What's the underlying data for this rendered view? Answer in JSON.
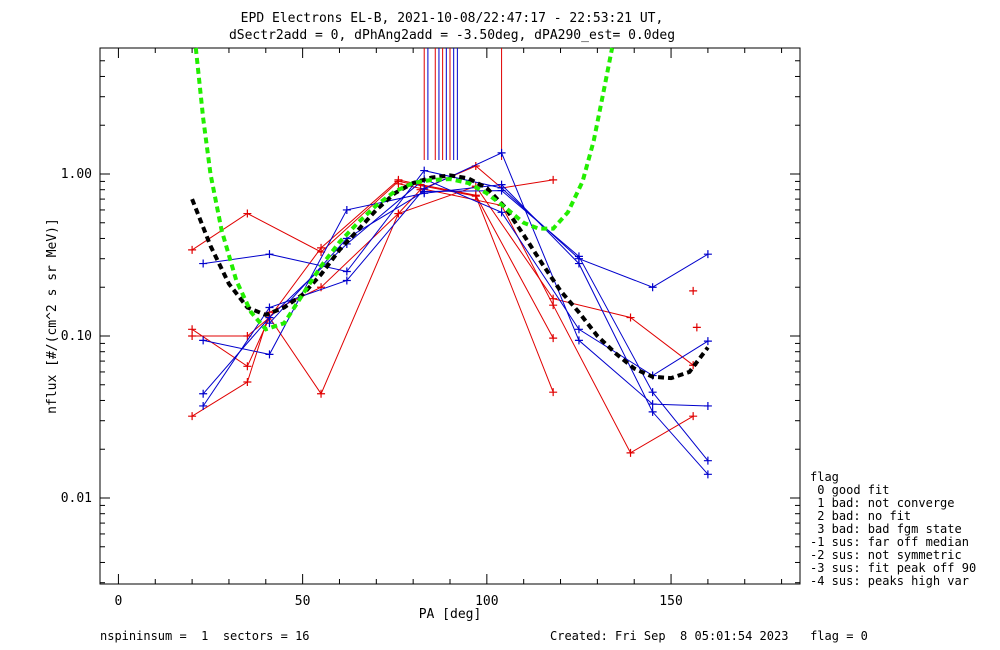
{
  "title_line1": "EPD Electrons EL-B, 2021-10-08/22:47:17 - 22:53:21 UT,",
  "title_line2": "dSectr2add = 0, dPhAng2add = -3.50deg, dPA290_est=   0.0deg",
  "footer_left": "nspininsum =  1  sectors = 16",
  "footer_right": "Created: Fri Sep  8 05:01:54 2023   flag = 0",
  "legend": {
    "title": "flag",
    "items": [
      " 0 good fit",
      " 1 bad: not converge",
      " 2 bad: no fit",
      " 3 bad: bad fgm state",
      "-1 sus: far off median",
      "-2 sus: not symmetric",
      "-3 sus: fit peak off 90",
      "-4 sus: peaks high var"
    ]
  },
  "colors": {
    "red": "#e00000",
    "blue": "#0000cc",
    "fit_black": "#000000",
    "fit_green": "#22ee00"
  },
  "chart_data": {
    "type": "line",
    "xlabel": "PA [deg]",
    "ylabel": "nflux [#/(cm^2 s sr MeV)]",
    "xlim": [
      -5,
      185
    ],
    "ylim": [
      0.003,
      6.0
    ],
    "yscale": "log",
    "xticks": [
      0,
      50,
      100,
      150
    ],
    "yticks": [
      0.01,
      0.1,
      1.0
    ],
    "ytick_labels": [
      "0.01",
      "0.10",
      "1.00"
    ],
    "series": [
      {
        "color": "red",
        "points": [
          [
            20,
            0.11
          ],
          [
            35,
            0.065
          ],
          [
            41,
            0.13
          ],
          [
            55,
            0.35
          ],
          [
            76,
            0.92
          ],
          [
            82,
            0.86
          ],
          [
            97,
            0.74
          ],
          [
            118,
            0.097
          ]
        ]
      },
      {
        "color": "red",
        "points": [
          [
            20,
            0.032
          ],
          [
            35,
            0.052
          ],
          [
            41,
            0.14
          ],
          [
            55,
            0.2
          ],
          [
            76,
            0.57
          ],
          [
            82,
            0.8
          ],
          [
            97,
            1.12
          ],
          [
            104,
            0.82
          ],
          [
            118,
            0.92
          ]
        ]
      },
      {
        "color": "red",
        "points": [
          [
            20,
            0.34
          ],
          [
            35,
            0.57
          ],
          [
            55,
            0.33
          ],
          [
            76,
            0.9
          ],
          [
            97,
            0.73
          ],
          [
            118,
            0.045
          ]
        ]
      },
      {
        "color": "red",
        "points": [
          [
            20,
            0.1
          ],
          [
            35,
            0.1
          ],
          [
            41,
            0.13
          ],
          [
            55,
            0.044
          ],
          [
            76,
            0.57
          ],
          [
            97,
            0.84
          ],
          [
            118,
            0.17
          ],
          [
            139,
            0.13
          ],
          [
            156,
            0.066
          ]
        ]
      },
      {
        "color": "red",
        "points": [
          [
            76,
            0.87
          ],
          [
            104,
            0.64
          ],
          [
            118,
            0.155
          ],
          [
            139,
            0.019
          ],
          [
            156,
            0.032
          ]
        ]
      },
      {
        "color": "red",
        "points": [
          [
            156,
            0.19
          ]
        ]
      },
      {
        "color": "red",
        "points": [
          [
            157,
            0.113
          ]
        ]
      },
      {
        "color": "blue",
        "points": [
          [
            23,
            0.28
          ],
          [
            41,
            0.32
          ],
          [
            62,
            0.25
          ],
          [
            83,
            1.05
          ],
          [
            104,
            0.82
          ],
          [
            125,
            0.3
          ],
          [
            145,
            0.2
          ],
          [
            160,
            0.32
          ]
        ]
      },
      {
        "color": "blue",
        "points": [
          [
            23,
            0.044
          ],
          [
            41,
            0.13
          ],
          [
            62,
            0.37
          ],
          [
            83,
            0.93
          ],
          [
            104,
            0.58
          ],
          [
            125,
            0.11
          ],
          [
            145,
            0.057
          ],
          [
            160,
            0.093
          ]
        ]
      },
      {
        "color": "blue",
        "points": [
          [
            23,
            0.037
          ],
          [
            41,
            0.15
          ],
          [
            62,
            0.22
          ],
          [
            83,
            0.81
          ],
          [
            104,
            1.35
          ],
          [
            125,
            0.094
          ],
          [
            145,
            0.038
          ],
          [
            160,
            0.037
          ]
        ]
      },
      {
        "color": "blue",
        "points": [
          [
            23,
            0.094
          ],
          [
            41,
            0.077
          ],
          [
            62,
            0.6
          ],
          [
            83,
            0.76
          ],
          [
            104,
            0.86
          ],
          [
            125,
            0.28
          ],
          [
            145,
            0.034
          ],
          [
            160,
            0.014
          ]
        ]
      },
      {
        "color": "blue",
        "points": [
          [
            41,
            0.12
          ],
          [
            62,
            0.4
          ],
          [
            83,
            0.78
          ],
          [
            104,
            0.79
          ],
          [
            125,
            0.31
          ],
          [
            145,
            0.045
          ],
          [
            160,
            0.017
          ]
        ]
      }
    ],
    "spikes": [
      {
        "color": "red",
        "x": 83
      },
      {
        "color": "blue",
        "x": 84
      },
      {
        "color": "red",
        "x": 86
      },
      {
        "color": "blue",
        "x": 87
      },
      {
        "color": "red",
        "x": 88
      },
      {
        "color": "blue",
        "x": 89
      },
      {
        "color": "red",
        "x": 90
      },
      {
        "color": "blue",
        "x": 91
      },
      {
        "color": "blue",
        "x": 92
      },
      {
        "color": "red",
        "x": 104
      }
    ],
    "fits": [
      {
        "color": "fit_black",
        "points": [
          [
            20,
            0.7
          ],
          [
            25,
            0.36
          ],
          [
            30,
            0.21
          ],
          [
            35,
            0.15
          ],
          [
            40,
            0.135
          ],
          [
            45,
            0.15
          ],
          [
            50,
            0.18
          ],
          [
            55,
            0.24
          ],
          [
            60,
            0.34
          ],
          [
            65,
            0.45
          ],
          [
            70,
            0.6
          ],
          [
            75,
            0.76
          ],
          [
            80,
            0.88
          ],
          [
            85,
            0.95
          ],
          [
            90,
            0.98
          ],
          [
            95,
            0.94
          ],
          [
            100,
            0.82
          ],
          [
            105,
            0.62
          ],
          [
            110,
            0.42
          ],
          [
            115,
            0.28
          ],
          [
            120,
            0.19
          ],
          [
            125,
            0.14
          ],
          [
            130,
            0.1
          ],
          [
            135,
            0.078
          ],
          [
            140,
            0.063
          ],
          [
            145,
            0.056
          ],
          [
            150,
            0.055
          ],
          [
            155,
            0.06
          ],
          [
            160,
            0.085
          ]
        ]
      },
      {
        "color": "fit_green",
        "points": [
          [
            21,
            6.0
          ],
          [
            23,
            2.2
          ],
          [
            25,
            1.0
          ],
          [
            28,
            0.45
          ],
          [
            32,
            0.22
          ],
          [
            36,
            0.14
          ],
          [
            40,
            0.11
          ],
          [
            45,
            0.12
          ],
          [
            50,
            0.18
          ],
          [
            55,
            0.27
          ],
          [
            60,
            0.38
          ],
          [
            65,
            0.5
          ],
          [
            70,
            0.64
          ],
          [
            75,
            0.78
          ],
          [
            80,
            0.88
          ],
          [
            85,
            0.92
          ],
          [
            90,
            0.93
          ],
          [
            95,
            0.88
          ],
          [
            100,
            0.76
          ],
          [
            105,
            0.62
          ],
          [
            110,
            0.5
          ],
          [
            114,
            0.46
          ],
          [
            118,
            0.46
          ],
          [
            122,
            0.58
          ],
          [
            126,
            0.9
          ],
          [
            129,
            1.6
          ],
          [
            132,
            3.5
          ],
          [
            134,
            6.0
          ]
        ]
      }
    ]
  }
}
